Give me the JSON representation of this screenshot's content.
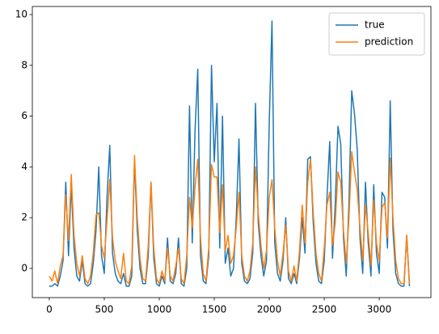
{
  "chart_data": {
    "type": "line",
    "x": [
      0,
      25,
      50,
      75,
      100,
      125,
      150,
      175,
      200,
      225,
      250,
      275,
      300,
      325,
      350,
      375,
      400,
      425,
      450,
      475,
      500,
      525,
      550,
      575,
      600,
      625,
      650,
      675,
      700,
      725,
      750,
      775,
      800,
      825,
      850,
      875,
      900,
      925,
      950,
      975,
      1000,
      1025,
      1050,
      1075,
      1100,
      1125,
      1150,
      1175,
      1200,
      1225,
      1250,
      1275,
      1300,
      1325,
      1350,
      1375,
      1400,
      1425,
      1450,
      1475,
      1500,
      1525,
      1550,
      1575,
      1600,
      1625,
      1650,
      1675,
      1700,
      1725,
      1750,
      1775,
      1800,
      1825,
      1850,
      1875,
      1900,
      1925,
      1950,
      1975,
      2000,
      2025,
      2050,
      2075,
      2100,
      2125,
      2150,
      2175,
      2200,
      2225,
      2250,
      2275,
      2300,
      2325,
      2350,
      2375,
      2400,
      2425,
      2450,
      2475,
      2500,
      2525,
      2550,
      2575,
      2600,
      2625,
      2650,
      2675,
      2700,
      2725,
      2750,
      2775,
      2800,
      2825,
      2850,
      2875,
      2900,
      2925,
      2950,
      2975,
      3000,
      3025,
      3050,
      3075,
      3100,
      3125,
      3150,
      3175,
      3200,
      3225,
      3250,
      3275
    ],
    "series": [
      {
        "name": "true",
        "color": "#1f77b4",
        "values": [
          -0.7,
          -0.7,
          -0.6,
          -0.7,
          -0.3,
          0.3,
          3.4,
          0.5,
          3.3,
          0.8,
          -0.3,
          -0.5,
          0.3,
          -0.6,
          -0.7,
          -0.6,
          0.2,
          1.5,
          4.0,
          0.5,
          -0.2,
          2.8,
          4.85,
          0.6,
          -0.2,
          -0.5,
          -0.6,
          -0.2,
          -0.7,
          -0.7,
          -0.3,
          4.3,
          1.5,
          0.0,
          -0.6,
          -0.6,
          0.5,
          3.4,
          0.4,
          -0.6,
          -0.7,
          -0.3,
          -0.6,
          1.2,
          -0.5,
          -0.6,
          -0.2,
          1.2,
          -0.6,
          -0.7,
          0.0,
          6.4,
          1.0,
          5.4,
          7.85,
          0.5,
          -0.5,
          -0.6,
          0.5,
          8.0,
          4.2,
          6.5,
          0.8,
          6.0,
          0.2,
          0.8,
          -0.3,
          0.0,
          2.0,
          5.1,
          0.2,
          -0.5,
          -0.6,
          -0.4,
          0.6,
          6.5,
          1.8,
          0.5,
          -0.3,
          0.3,
          5.75,
          9.75,
          1.0,
          -0.2,
          -0.5,
          0.3,
          2.0,
          -0.4,
          -0.6,
          -0.2,
          -0.6,
          0.4,
          2.0,
          0.6,
          4.3,
          4.4,
          1.8,
          0.2,
          -0.5,
          -0.6,
          0.3,
          2.8,
          5.0,
          0.4,
          2.5,
          5.6,
          4.9,
          1.2,
          -0.3,
          2.6,
          7.0,
          6.1,
          4.7,
          1.2,
          -0.2,
          3.4,
          1.0,
          -0.3,
          3.3,
          0.6,
          -0.2,
          3.0,
          2.8,
          0.8,
          6.6,
          1.5,
          -0.2,
          -0.6,
          -0.7,
          -0.7,
          1.3,
          -0.7
        ]
      },
      {
        "name": "prediction",
        "color": "#ff7f0e",
        "values": [
          -0.3,
          -0.5,
          -0.1,
          -0.6,
          0.1,
          0.5,
          2.9,
          1.1,
          3.7,
          1.3,
          0.2,
          -0.3,
          0.5,
          -0.4,
          -0.6,
          -0.3,
          0.6,
          2.1,
          2.2,
          0.9,
          0.4,
          1.9,
          3.5,
          1.2,
          0.3,
          -0.1,
          -0.4,
          0.6,
          -0.5,
          -0.6,
          0.1,
          4.45,
          2.0,
          0.4,
          -0.4,
          -0.5,
          0.9,
          3.4,
          0.8,
          -0.4,
          -0.6,
          -0.1,
          -0.5,
          0.8,
          -0.3,
          -0.5,
          0.1,
          0.8,
          -0.4,
          -0.6,
          0.5,
          2.8,
          1.6,
          3.2,
          4.3,
          1.2,
          -0.2,
          -0.5,
          0.8,
          4.1,
          3.6,
          3.6,
          1.4,
          3.3,
          0.7,
          1.3,
          0.2,
          0.5,
          1.6,
          3.0,
          0.5,
          -0.3,
          -0.5,
          -0.1,
          1.0,
          4.0,
          2.2,
          0.9,
          0.0,
          0.7,
          2.8,
          3.5,
          1.6,
          0.3,
          -0.3,
          0.6,
          1.7,
          -0.1,
          -0.5,
          0.1,
          -0.5,
          0.7,
          2.5,
          1.0,
          3.4,
          4.3,
          2.2,
          0.6,
          -0.2,
          -0.5,
          0.8,
          2.5,
          3.0,
          0.9,
          1.8,
          3.8,
          3.4,
          1.5,
          0.2,
          2.0,
          4.6,
          3.8,
          3.1,
          1.6,
          0.3,
          2.5,
          1.4,
          0.1,
          2.7,
          1.0,
          0.3,
          2.4,
          2.6,
          1.2,
          4.35,
          2.0,
          0.3,
          -0.4,
          -0.6,
          -0.6,
          1.3,
          -0.6
        ]
      }
    ],
    "xlim": [
      -154,
      3470
    ],
    "ylim": [
      -1.15,
      10.32
    ],
    "xticks": [
      0,
      500,
      1000,
      1500,
      2000,
      2500,
      3000
    ],
    "yticks": [
      0,
      2,
      4,
      6,
      8,
      10
    ],
    "legend": "upper right"
  }
}
